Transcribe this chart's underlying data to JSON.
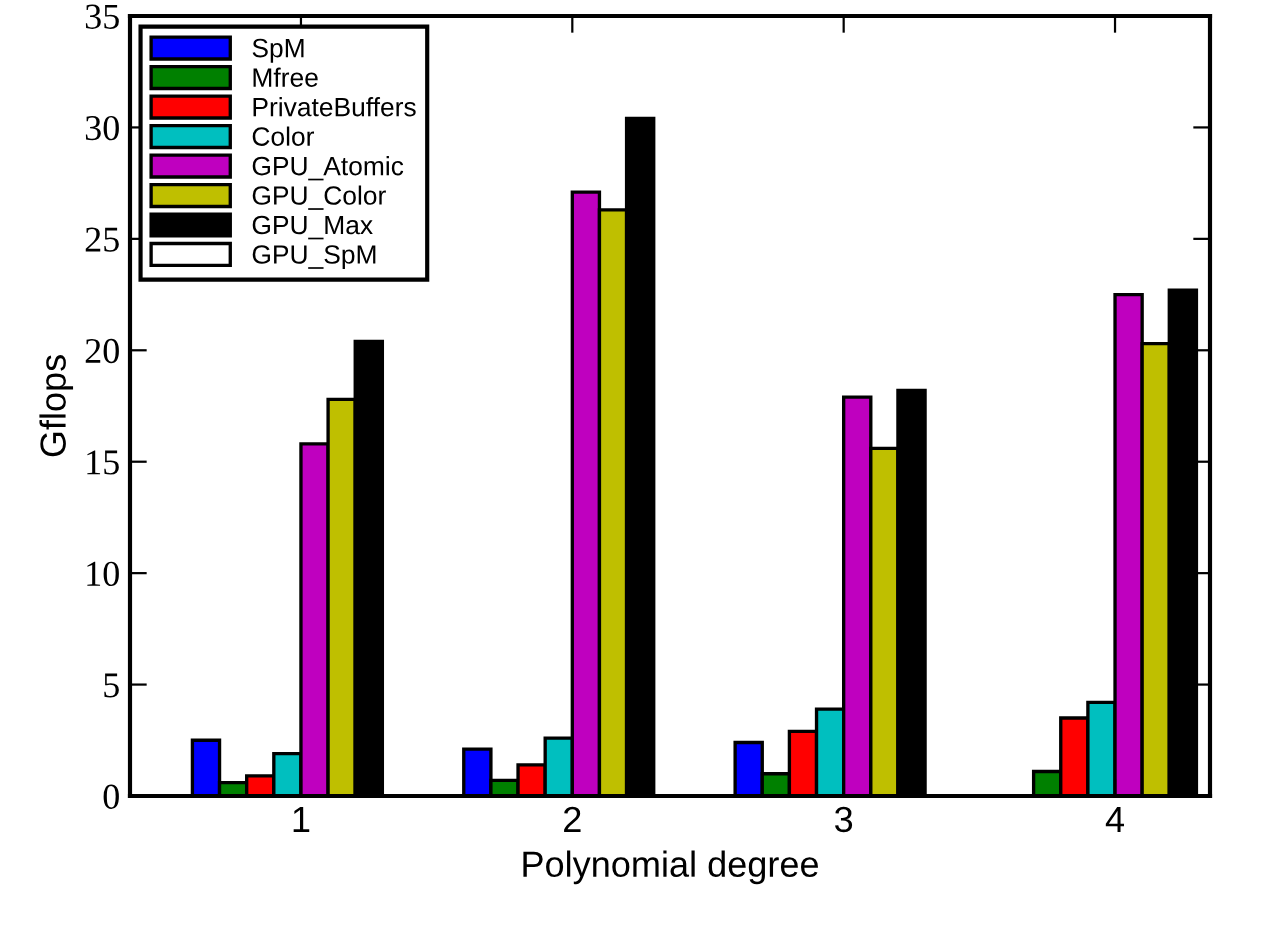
{
  "chart_data": {
    "type": "bar",
    "xlabel": "Polynomial degree",
    "ylabel": "Gflops",
    "categories": [
      "1",
      "2",
      "3",
      "4"
    ],
    "series": [
      {
        "name": "SpM",
        "color": "#0000ff",
        "values": [
          2.5,
          2.1,
          2.4,
          null
        ]
      },
      {
        "name": "Mfree",
        "color": "#008000",
        "values": [
          0.6,
          0.7,
          1.0,
          1.1
        ]
      },
      {
        "name": "PrivateBuffers",
        "color": "#ff0000",
        "values": [
          0.9,
          1.4,
          2.9,
          3.5
        ]
      },
      {
        "name": "Color",
        "color": "#00bfbf",
        "values": [
          1.9,
          2.6,
          3.9,
          4.2
        ]
      },
      {
        "name": "GPU_Atomic",
        "color": "#bf00bf",
        "values": [
          15.8,
          27.1,
          17.9,
          22.5
        ]
      },
      {
        "name": "GPU_Color",
        "color": "#bfbf00",
        "values": [
          17.8,
          26.3,
          15.6,
          20.3
        ]
      },
      {
        "name": "GPU_Max",
        "color": "#000000",
        "values": [
          20.4,
          30.4,
          18.2,
          22.7
        ]
      },
      {
        "name": "GPU_SpM",
        "color": "#ffffff",
        "values": [
          null,
          null,
          null,
          null
        ]
      }
    ],
    "ylim": [
      0,
      35
    ],
    "yticks": [
      0,
      5,
      10,
      15,
      20,
      25,
      30,
      35
    ],
    "grid": false,
    "legend": "top left"
  }
}
